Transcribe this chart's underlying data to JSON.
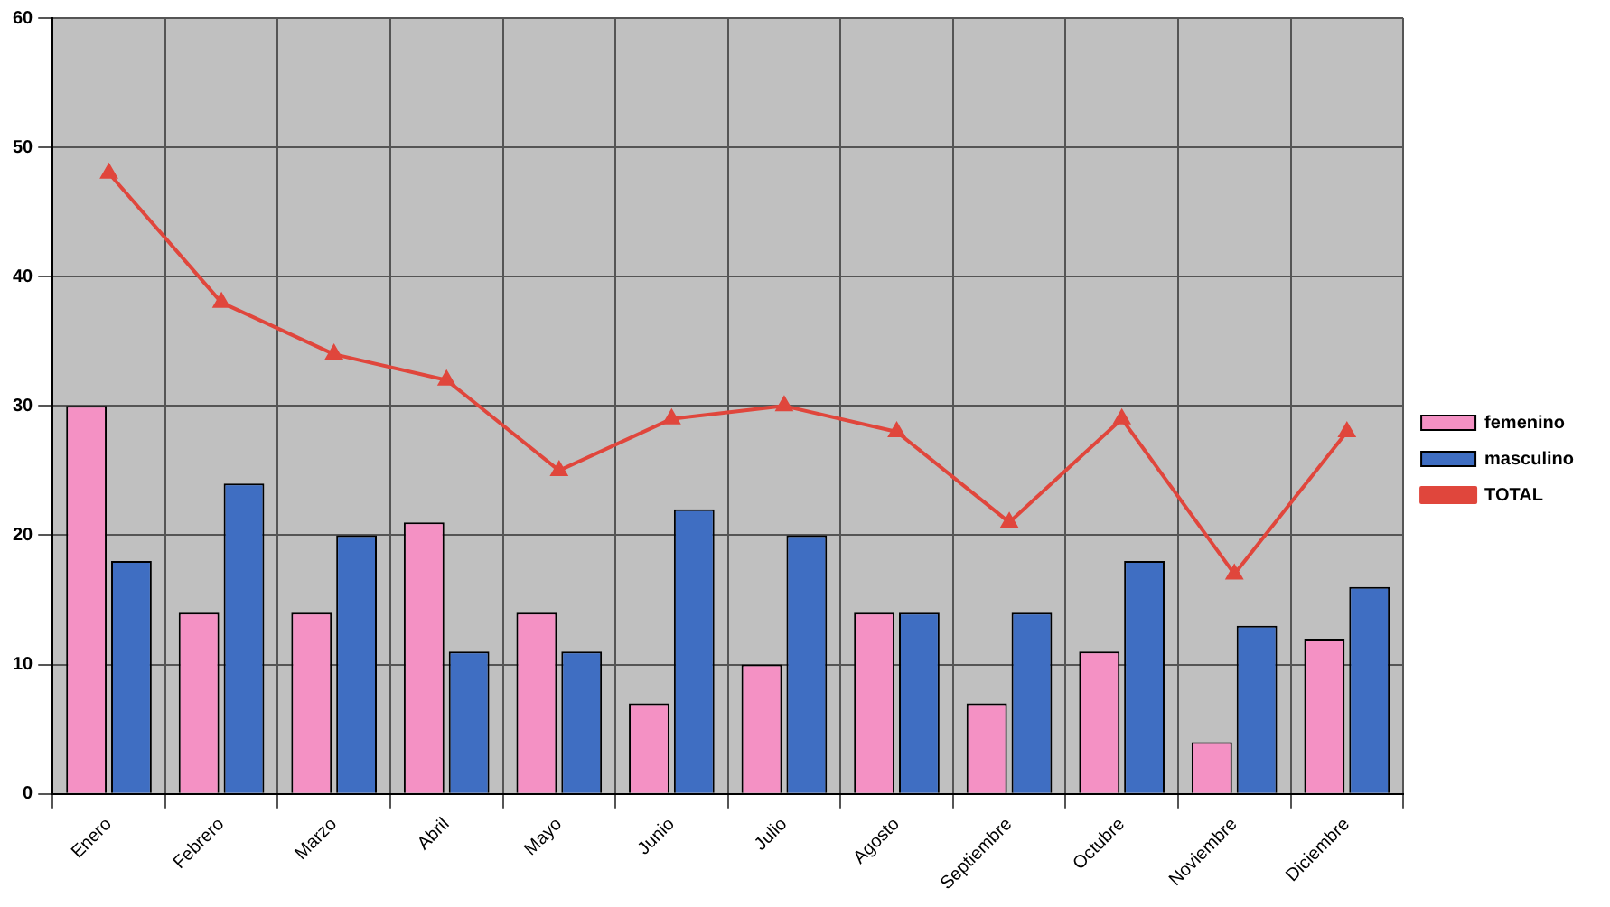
{
  "chart_data": {
    "type": "bar",
    "categories": [
      "Enero",
      "Febrero",
      "Marzo",
      "Abril",
      "Mayo",
      "Junio",
      "Julio",
      "Agosto",
      "Septiembre",
      "Octubre",
      "Noviembre",
      "Diciembre"
    ],
    "series": [
      {
        "name": "femenino",
        "color": "#f491c4",
        "values": [
          30,
          14,
          14,
          21,
          14,
          7,
          10,
          14,
          7,
          11,
          4,
          12
        ]
      },
      {
        "name": "masculino",
        "color": "#3f6ec2",
        "values": [
          18,
          24,
          20,
          11,
          11,
          22,
          20,
          14,
          14,
          18,
          13,
          16
        ]
      },
      {
        "name": "TOTAL",
        "type": "line",
        "color": "#e0463c",
        "values": [
          48,
          38,
          34,
          32,
          25,
          29,
          30,
          28,
          21,
          29,
          17,
          28
        ]
      }
    ],
    "ylim": [
      0,
      60
    ],
    "yticks": [
      0,
      10,
      20,
      30,
      40,
      50,
      60
    ],
    "grid": true,
    "legend": "right",
    "marker": "triangle",
    "line_style": "solid"
  }
}
